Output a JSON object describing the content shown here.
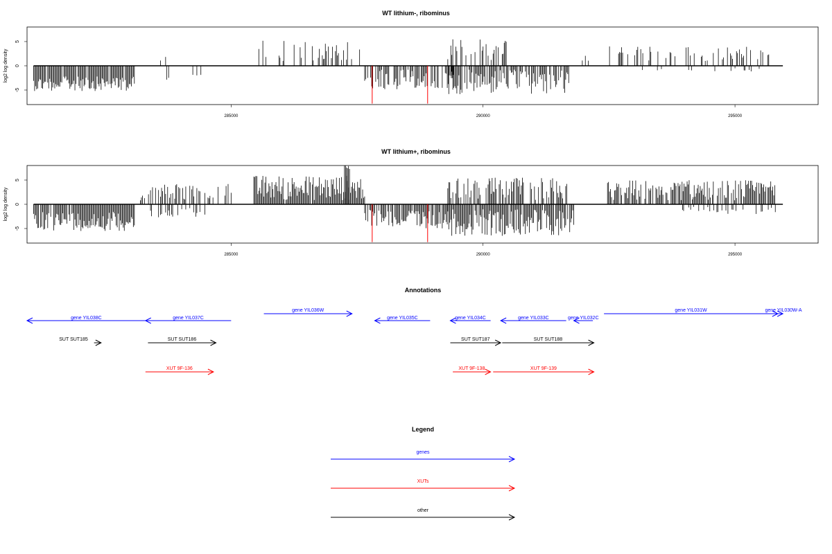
{
  "chart_data": [
    {
      "type": "bar",
      "title": "WT lithium-, ribominus",
      "ylabel": "log2 log density",
      "xlabel": "",
      "xlim": [
        280950,
        296650
      ],
      "ylim": [
        -8,
        8
      ],
      "xticks": [
        285000,
        290000,
        295000
      ],
      "yticks": [
        5,
        0,
        -5
      ],
      "ytick_labels": [
        "5",
        "0",
        "-5"
      ],
      "segments": [
        {
          "from": 281080,
          "to": 283080,
          "sign": -1,
          "density": 0.9,
          "mag": [
            2.2,
            5.2
          ]
        },
        {
          "from": 283300,
          "to": 283700,
          "sign": 1,
          "density": 0.3,
          "mag": [
            1.0,
            3.0
          ]
        },
        {
          "from": 283400,
          "to": 284600,
          "sign": -1,
          "density": 0.1,
          "mag": [
            1.5,
            3.0
          ]
        },
        {
          "from": 285550,
          "to": 287650,
          "sign": 1,
          "density": 0.35,
          "mag": [
            1.0,
            5.2
          ]
        },
        {
          "from": 287650,
          "to": 289450,
          "sign": -1,
          "density": 0.6,
          "mag": [
            0.8,
            5.0
          ]
        },
        {
          "from": 289300,
          "to": 290500,
          "sign": 1,
          "density": 0.5,
          "mag": [
            0.8,
            5.5
          ]
        },
        {
          "from": 289300,
          "to": 291700,
          "sign": -1,
          "density": 0.75,
          "mag": [
            0.8,
            6.0
          ]
        },
        {
          "from": 291850,
          "to": 292100,
          "sign": 1,
          "density": 0.2,
          "mag": [
            1.0,
            2.2
          ]
        },
        {
          "from": 292450,
          "to": 295750,
          "sign": 1,
          "density": 0.35,
          "mag": [
            1.0,
            4.0
          ]
        },
        {
          "from": 292500,
          "to": 295500,
          "sign": -1,
          "density": 0.04,
          "mag": [
            0.5,
            1.2
          ]
        }
      ],
      "highlights": [
        {
          "x": 287800,
          "value": -7.8,
          "color": "#ff0000"
        },
        {
          "x": 288900,
          "value": -7.8,
          "color": "#ff0000"
        }
      ]
    },
    {
      "type": "bar",
      "title": "WT lithium+, ribominus",
      "ylabel": "log2 log density",
      "xlabel": "",
      "xlim": [
        280950,
        296650
      ],
      "ylim": [
        -8,
        8
      ],
      "xticks": [
        285000,
        290000,
        295000
      ],
      "yticks": [
        5,
        0,
        -5
      ],
      "ytick_labels": [
        "5",
        "0",
        "-5"
      ],
      "segments": [
        {
          "from": 281080,
          "to": 283080,
          "sign": -1,
          "density": 0.95,
          "mag": [
            1.5,
            5.5
          ]
        },
        {
          "from": 283200,
          "to": 285000,
          "sign": 1,
          "density": 0.35,
          "mag": [
            0.8,
            4.2
          ]
        },
        {
          "from": 283300,
          "to": 284500,
          "sign": -1,
          "density": 0.2,
          "mag": [
            0.8,
            2.8
          ]
        },
        {
          "from": 285450,
          "to": 287650,
          "sign": 1,
          "density": 0.95,
          "mag": [
            0.8,
            6.0
          ]
        },
        {
          "from": 287250,
          "to": 287350,
          "sign": 1,
          "density": 1.0,
          "mag": [
            7.0,
            8.0
          ]
        },
        {
          "from": 287650,
          "to": 289300,
          "sign": -1,
          "density": 0.85,
          "mag": [
            1.0,
            5.0
          ]
        },
        {
          "from": 289300,
          "to": 291800,
          "sign": -1,
          "density": 0.95,
          "mag": [
            1.0,
            6.5
          ]
        },
        {
          "from": 289300,
          "to": 291700,
          "sign": 1,
          "density": 0.6,
          "mag": [
            0.8,
            5.5
          ]
        },
        {
          "from": 292450,
          "to": 295800,
          "sign": 1,
          "density": 0.85,
          "mag": [
            0.8,
            5.0
          ]
        },
        {
          "from": 293800,
          "to": 295800,
          "sign": -1,
          "density": 0.25,
          "mag": [
            0.5,
            2.0
          ]
        }
      ],
      "highlights": [
        {
          "x": 287800,
          "value": -7.8,
          "color": "#ff0000"
        },
        {
          "x": 288900,
          "value": -7.8,
          "color": "#ff0000"
        }
      ]
    }
  ],
  "annotations": {
    "title": "Annotations",
    "rows": [
      {
        "color": "#0000ff",
        "features": [
          {
            "label": "gene YIL038C",
            "dir": "left",
            "start": 280950,
            "end": 283300
          },
          {
            "label": "gene YIL037C",
            "dir": "left",
            "start": 283300,
            "end": 285000
          },
          {
            "label": "gene YIL036W",
            "dir": "right",
            "start": 285650,
            "end": 287400
          },
          {
            "label": "gene YIL035C",
            "dir": "left",
            "start": 287850,
            "end": 288950
          },
          {
            "label": "gene YIL034C",
            "dir": "left",
            "start": 289350,
            "end": 290150
          },
          {
            "label": "gene YIL033C",
            "dir": "left",
            "start": 290350,
            "end": 291650
          },
          {
            "label": "gene YIL032C",
            "dir": "left",
            "start": 291800,
            "end": 292180
          },
          {
            "label": "gene YIL031W",
            "dir": "right",
            "start": 292400,
            "end": 295850
          },
          {
            "label": "gene YIL030W-A",
            "dir": "right",
            "start": 295600,
            "end": 295950
          }
        ]
      },
      {
        "color": "#000000",
        "features": [
          {
            "label": "SUT SUT185",
            "dir": "right",
            "start": 282280,
            "end": 282420
          },
          {
            "label": "SUT SUT186",
            "dir": "right",
            "start": 283350,
            "end": 284700
          },
          {
            "label": "SUT SUT187",
            "dir": "right",
            "start": 289350,
            "end": 290350
          },
          {
            "label": "SUT SUT188",
            "dir": "right",
            "start": 290380,
            "end": 292200
          }
        ]
      },
      {
        "color": "#ff0000",
        "features": [
          {
            "label": "XUT 9F-136",
            "dir": "right",
            "start": 283300,
            "end": 284650
          },
          {
            "label": "XUT 9F-138",
            "dir": "right",
            "start": 289400,
            "end": 290150
          },
          {
            "label": "XUT 9F-139",
            "dir": "right",
            "start": 290200,
            "end": 292200
          }
        ]
      }
    ]
  },
  "legend": {
    "title": "Legend",
    "items": [
      {
        "label": "genes",
        "color": "#0000ff"
      },
      {
        "label": "XUTs",
        "color": "#ff0000"
      },
      {
        "label": "other",
        "color": "#000000"
      }
    ]
  }
}
